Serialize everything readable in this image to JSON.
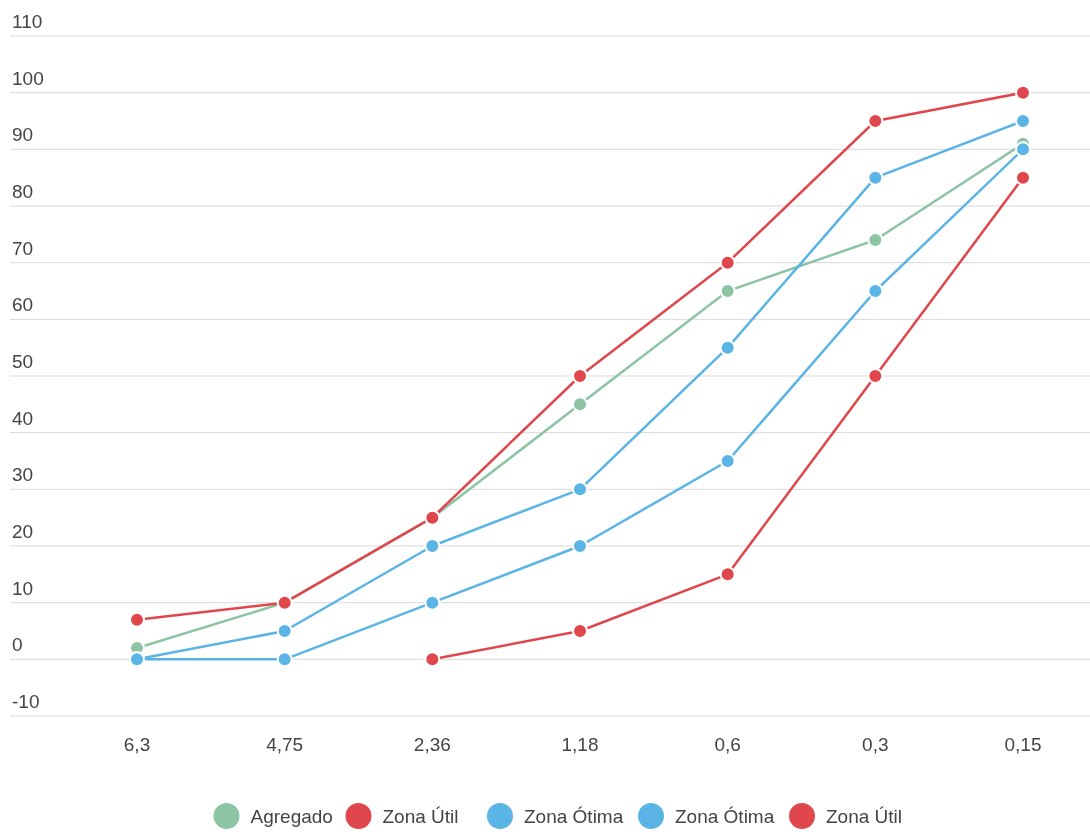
{
  "chart_data": {
    "type": "line",
    "categories": [
      "6,3",
      "4,75",
      "2,36",
      "1,18",
      "0,6",
      "0,3",
      "0,15"
    ],
    "ylim": [
      -10,
      110
    ],
    "yticks": [
      -10,
      0,
      10,
      20,
      30,
      40,
      50,
      60,
      70,
      80,
      90,
      100,
      110
    ],
    "grid": "y",
    "legend": "bottom",
    "marker": "circle",
    "line_style": "solid",
    "series": [
      {
        "name": "Agregado",
        "color": "#8cc4a4",
        "values": [
          2,
          10,
          25,
          45,
          65,
          74,
          91
        ]
      },
      {
        "name": "Zona Útil",
        "color": "#e0474c",
        "values": [
          7,
          10,
          25,
          50,
          70,
          95,
          100
        ]
      },
      {
        "name": "Zona Ótima",
        "color": "#5ab4e5",
        "values": [
          0,
          5,
          20,
          30,
          55,
          85,
          95
        ]
      },
      {
        "name": "Zona Ótima",
        "color": "#5ab4e5",
        "values": [
          0,
          0,
          10,
          20,
          35,
          65,
          90
        ]
      },
      {
        "name": "Zona Útil",
        "color": "#e0474c",
        "values": [
          null,
          null,
          0,
          5,
          15,
          50,
          85
        ]
      }
    ]
  }
}
